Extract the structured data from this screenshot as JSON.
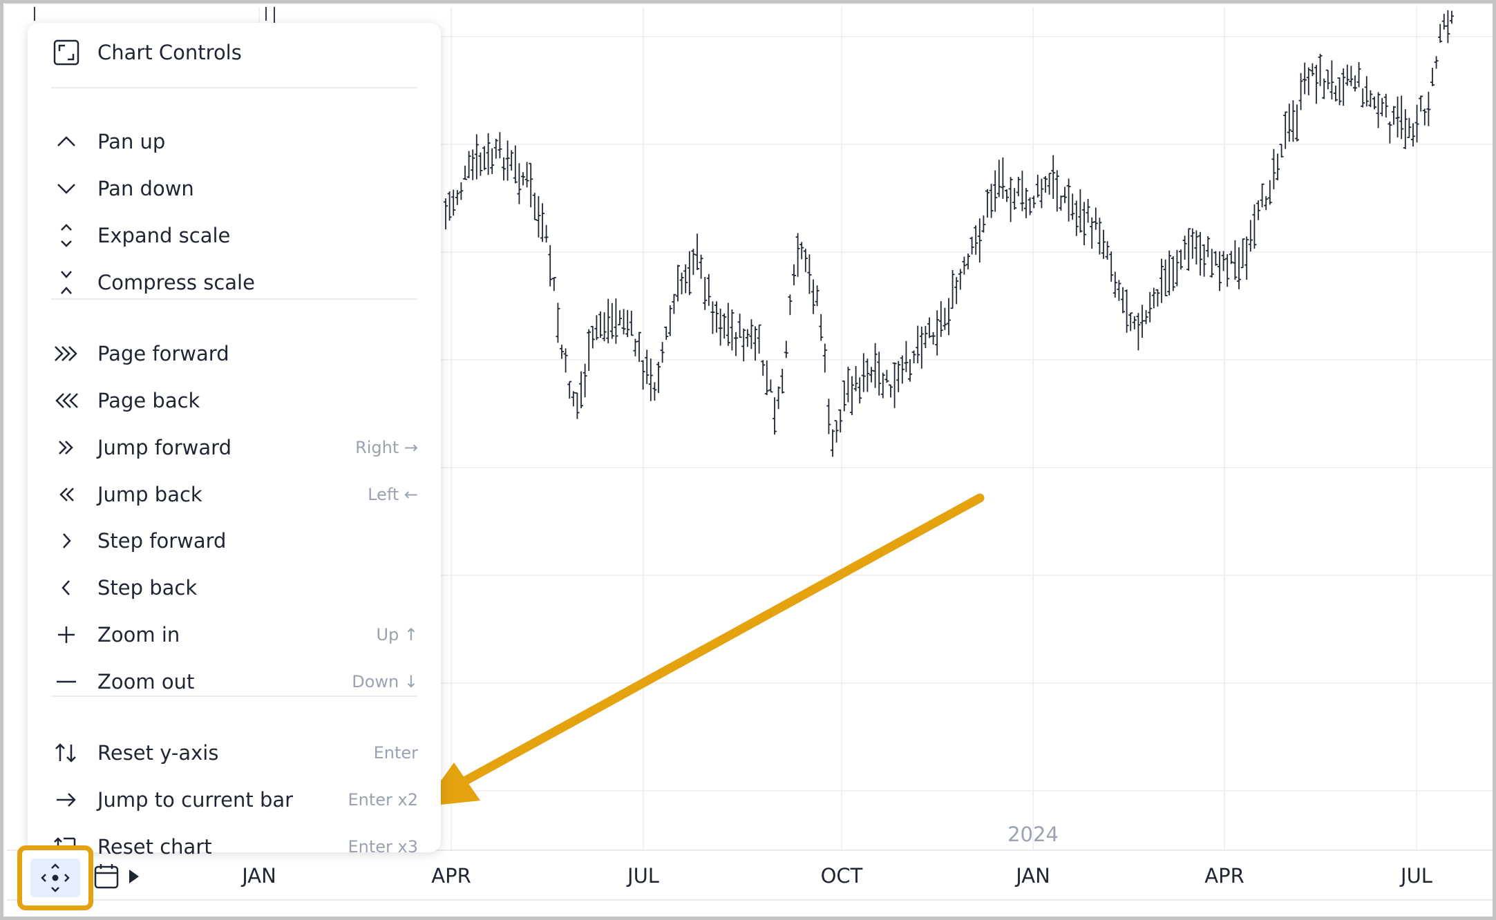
{
  "chart_data": {
    "type": "bar",
    "x_axis_labels": [
      "JAN",
      "APR",
      "JUL",
      "OCT",
      "JAN",
      "APR",
      "JUL"
    ],
    "year_label": "2024"
  },
  "menu": {
    "title": "Chart Controls",
    "groups": [
      [
        {
          "label": "Pan up",
          "icon": "chevron-up-icon",
          "shortcut": ""
        },
        {
          "label": "Pan down",
          "icon": "chevron-down-icon",
          "shortcut": ""
        },
        {
          "label": "Expand scale",
          "icon": "expand-scale-icon",
          "shortcut": ""
        },
        {
          "label": "Compress scale",
          "icon": "compress-scale-icon",
          "shortcut": ""
        }
      ],
      [
        {
          "label": "Page forward",
          "icon": "triple-chevron-right-icon",
          "shortcut": ""
        },
        {
          "label": "Page back",
          "icon": "triple-chevron-left-icon",
          "shortcut": ""
        },
        {
          "label": "Jump forward",
          "icon": "double-chevron-right-icon",
          "shortcut": "Right →"
        },
        {
          "label": "Jump back",
          "icon": "double-chevron-left-icon",
          "shortcut": "Left ←"
        },
        {
          "label": "Step forward",
          "icon": "chevron-right-icon",
          "shortcut": ""
        },
        {
          "label": "Step back",
          "icon": "chevron-left-icon",
          "shortcut": ""
        },
        {
          "label": "Zoom in",
          "icon": "plus-icon",
          "shortcut": "Up ↑"
        },
        {
          "label": "Zoom out",
          "icon": "minus-icon",
          "shortcut": "Down ↓"
        }
      ],
      [
        {
          "label": "Reset y-axis",
          "icon": "reset-y-axis-icon",
          "shortcut": "Enter"
        },
        {
          "label": "Jump to current bar",
          "icon": "arrow-right-icon",
          "shortcut": "Enter x2"
        },
        {
          "label": "Reset chart",
          "icon": "reset-chart-icon",
          "shortcut": "Enter x3"
        }
      ]
    ]
  },
  "toolbar": {
    "controls_icon": "chart-controls-icon",
    "calendar_icon": "calendar-icon",
    "play_icon": "play-icon"
  },
  "colors": {
    "accent_highlight": "#e3a20e",
    "bars": "#1f2533",
    "grid": "#ececf2",
    "muted_text": "#9aa2b1"
  }
}
